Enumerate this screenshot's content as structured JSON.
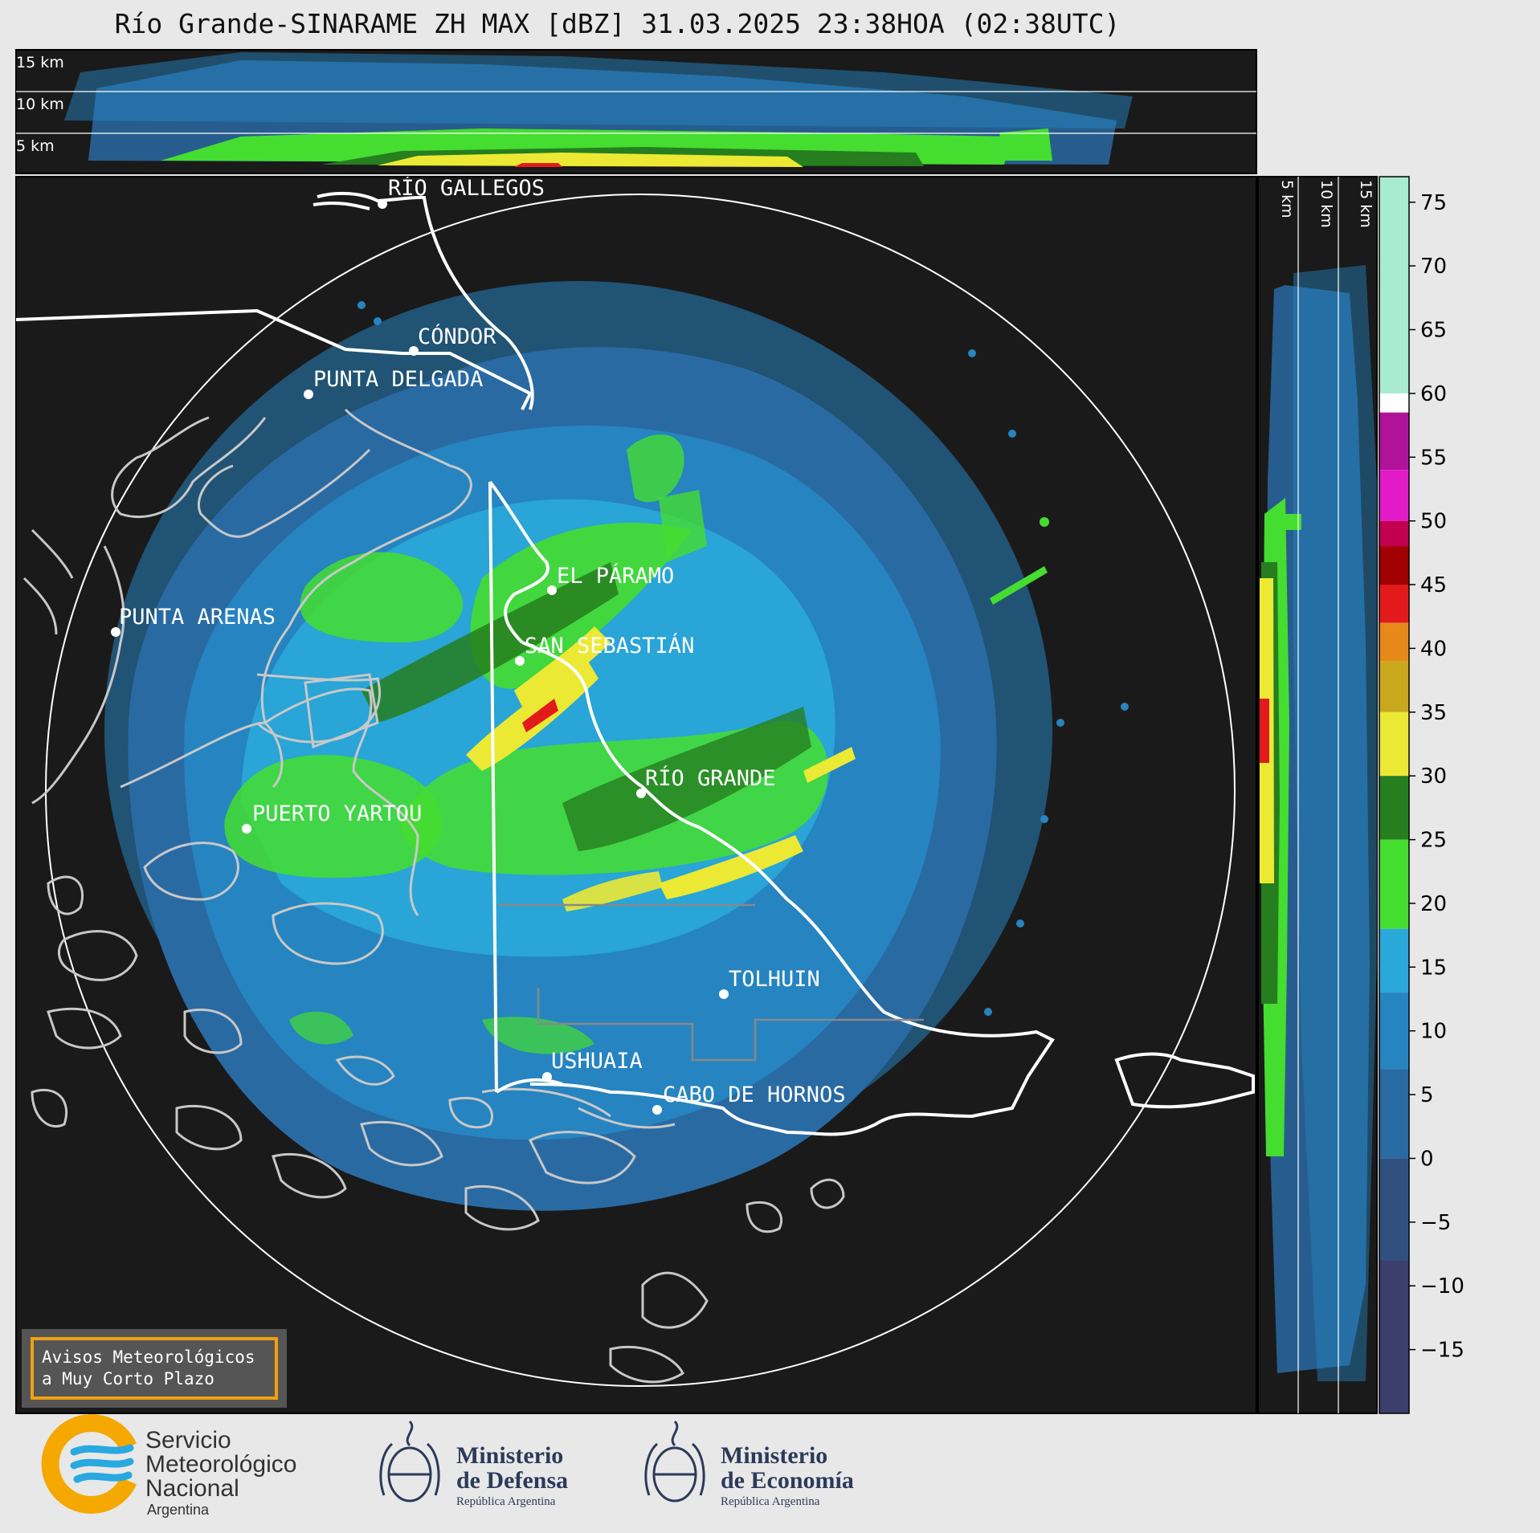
{
  "title": "Río Grande-SINARAME ZH MAX [dBZ] 31.03.2025 23:38HOA (02:38UTC)",
  "height_labels": [
    "15 km",
    "10 km",
    "5 km"
  ],
  "colorbar": {
    "ticks": [
      "75",
      "70",
      "65",
      "60",
      "55",
      "50",
      "45",
      "40",
      "35",
      "30",
      "25",
      "20",
      "15",
      "10",
      "5",
      "0",
      "−5",
      "−10",
      "−15"
    ],
    "bands": [
      {
        "from": 60,
        "to": 77,
        "color": "#a8ead2"
      },
      {
        "from": 58.5,
        "to": 60,
        "color": "#ffffff"
      },
      {
        "from": 54,
        "to": 58.5,
        "color": "#b0129a"
      },
      {
        "from": 50,
        "to": 54,
        "color": "#e21bc9"
      },
      {
        "from": 48,
        "to": 50,
        "color": "#c2004f"
      },
      {
        "from": 45,
        "to": 48,
        "color": "#a00000"
      },
      {
        "from": 42,
        "to": 45,
        "color": "#e31a1c"
      },
      {
        "from": 39,
        "to": 42,
        "color": "#e7891a"
      },
      {
        "from": 35,
        "to": 39,
        "color": "#c9a81e"
      },
      {
        "from": 30,
        "to": 35,
        "color": "#ece934"
      },
      {
        "from": 25,
        "to": 30,
        "color": "#267e1f"
      },
      {
        "from": 18,
        "to": 25,
        "color": "#45dd2f"
      },
      {
        "from": 13,
        "to": 18,
        "color": "#2aa8d9"
      },
      {
        "from": 7,
        "to": 13,
        "color": "#2684c0"
      },
      {
        "from": 0,
        "to": 7,
        "color": "#2a6aa3"
      },
      {
        "from": -8,
        "to": 0,
        "color": "#30507f"
      },
      {
        "from": -20,
        "to": -8,
        "color": "#3c3f6c"
      }
    ],
    "min": -20,
    "max": 77
  },
  "cities": [
    {
      "name": "RÍO GALLEGOS"
    },
    {
      "name": "CÓNDOR"
    },
    {
      "name": "PUNTA DELGADA"
    },
    {
      "name": "PUNTA ARENAS"
    },
    {
      "name": "EL PÁRAMO"
    },
    {
      "name": "SAN SEBASTIÁN"
    },
    {
      "name": "RÍO GRANDE"
    },
    {
      "name": "PUERTO YARTOU"
    },
    {
      "name": "TOLHUIN"
    },
    {
      "name": "USHUAIA"
    },
    {
      "name": "CABO DE HORNOS"
    }
  ],
  "alert_box": {
    "line1": "Avisos Meteorológicos",
    "line2": "a Muy Corto Plazo",
    "border_color": "#f0a010"
  },
  "logos": {
    "smn": {
      "line1": "Servicio",
      "line2": "Meteorológico",
      "line3": "Nacional",
      "line4": "Argentina"
    },
    "defensa": {
      "line1": "Ministerio",
      "line2": "de Defensa",
      "line3": "República Argentina"
    },
    "economia": {
      "line1": "Ministerio",
      "line2": "de Economía",
      "line3": "República Argentina"
    }
  },
  "colors": {
    "map_bg": "#1a1a1a",
    "page_bg": "#e8e8e8",
    "accent": "#f5a800",
    "smn_blue": "#2aa8e0",
    "logo_navy": "#2c3a5a"
  }
}
